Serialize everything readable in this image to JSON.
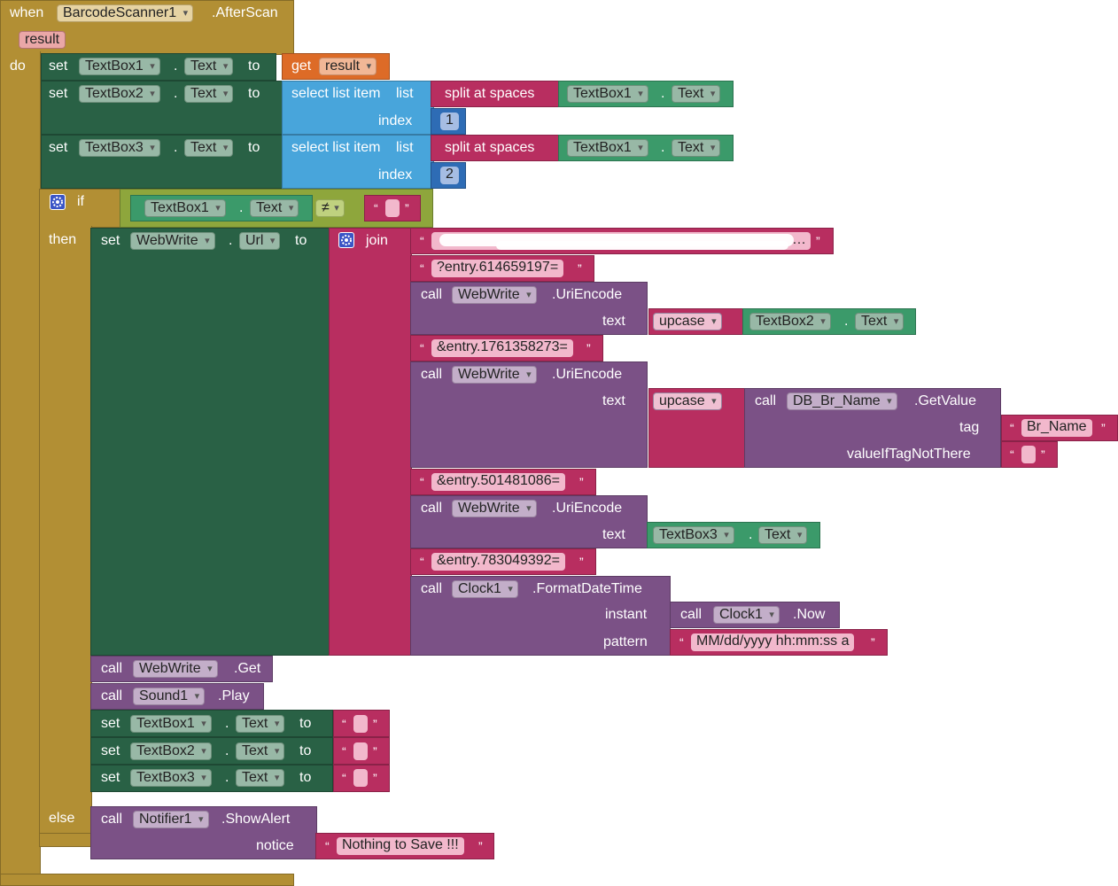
{
  "event": {
    "when_kw": "when",
    "component": "BarcodeScanner1",
    "event_name": ".AfterScan",
    "param": "result",
    "do_kw": "do"
  },
  "kw": {
    "set": "set",
    "to": "to",
    "dot": ".",
    "call": "call",
    "get": "get",
    "if": "if",
    "then": "then",
    "else": "else",
    "join": "join",
    "select_list_item": "select list item",
    "list": "list",
    "index": "index",
    "split_at_spaces": "split at spaces",
    "upcase": "upcase",
    "text": "text",
    "tag": "tag",
    "value_if_tag_not_there": "valueIfTagNotThere",
    "instant": "instant",
    "pattern": "pattern",
    "notice": "notice",
    "neq": "≠",
    "open_q": "“",
    "close_q": "”",
    "ellipsis": "…"
  },
  "blocks": {
    "set1": {
      "component": "TextBox1",
      "property": "Text",
      "get_var": "result"
    },
    "set2": {
      "component": "TextBox2",
      "property": "Text",
      "split_component": "TextBox1",
      "split_property": "Text",
      "index": "1"
    },
    "set3": {
      "component": "TextBox3",
      "property": "Text",
      "split_component": "TextBox1",
      "split_property": "Text",
      "index": "2"
    },
    "if_cond": {
      "component": "TextBox1",
      "property": "Text"
    },
    "set_url": {
      "component": "WebWrite",
      "property": "Url"
    },
    "join": {
      "s1": "?entry.614659197=",
      "enc1": {
        "component": "WebWrite",
        "method": ".UriEncode",
        "upcase_component": "TextBox2",
        "upcase_property": "Text"
      },
      "s2": "&entry.1761358273=",
      "enc2": {
        "component": "WebWrite",
        "method": ".UriEncode",
        "db_component": "DB_Br_Name",
        "db_method": ".GetValue",
        "tag_value": "Br_Name"
      },
      "s3": "&entry.501481086=",
      "enc3": {
        "component": "WebWrite",
        "method": ".UriEncode",
        "text_component": "TextBox3",
        "text_property": "Text"
      },
      "s4": "&entry.783049392=",
      "fmt": {
        "component": "Clock1",
        "method": ".FormatDateTime",
        "now_component": "Clock1",
        "now_method": ".Now",
        "pattern": "MM/dd/yyyy hh:mm:ss a"
      }
    },
    "call_get": {
      "component": "WebWrite",
      "method": ".Get"
    },
    "call_play": {
      "component": "Sound1",
      "method": ".Play"
    },
    "clear": [
      {
        "component": "TextBox1",
        "property": "Text"
      },
      {
        "component": "TextBox2",
        "property": "Text"
      },
      {
        "component": "TextBox3",
        "property": "Text"
      }
    ],
    "alert": {
      "component": "Notifier1",
      "method": ".ShowAlert",
      "notice": "Nothing to Save !!!"
    }
  },
  "colors": {
    "event": "#b28f34",
    "component_setter": "#296145",
    "control": "#8ea63c",
    "list": "#48a5db",
    "text": "#b82e60",
    "call": "#7b5186",
    "variable": "#dd6b27",
    "math": "#2e6cb5"
  },
  "icons": [
    "gear-icon",
    "dropdown-arrow-icon"
  ]
}
